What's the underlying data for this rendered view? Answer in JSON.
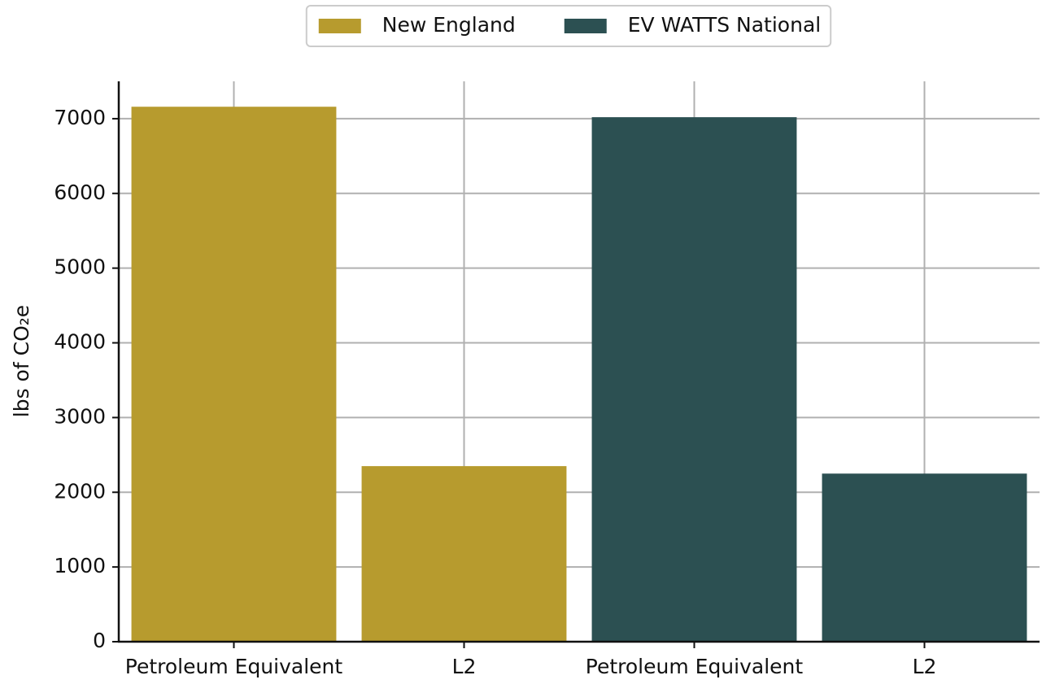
{
  "chart_data": {
    "type": "bar",
    "ylabel": "lbs of CO₂e",
    "categories": [
      "Petroleum Equivalent",
      "L2",
      "Petroleum Equivalent",
      "L2"
    ],
    "series": [
      {
        "name": "New England",
        "color": "#b79b2e",
        "values": [
          7160,
          2350,
          null,
          null
        ]
      },
      {
        "name": "EV WATTS National",
        "color": "#2c5052",
        "values": [
          null,
          null,
          7020,
          2250
        ]
      }
    ],
    "ylim": [
      0,
      7500
    ],
    "yticks": [
      0,
      1000,
      2000,
      3000,
      4000,
      5000,
      6000,
      7000
    ],
    "grid": true,
    "legend": "top"
  }
}
